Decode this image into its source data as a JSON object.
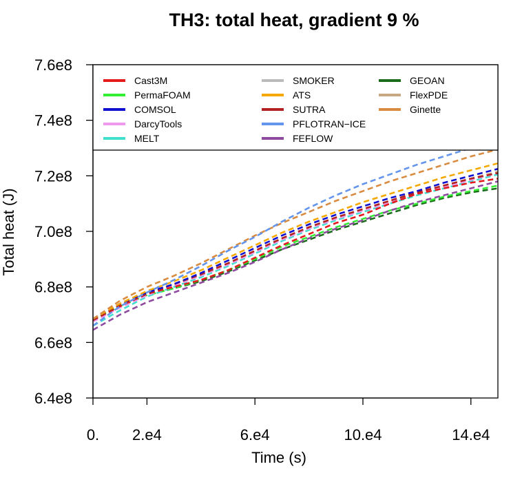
{
  "chart_data": {
    "type": "line",
    "title": "TH3: total heat, gradient 9 %",
    "xlabel": "Time (s)",
    "ylabel": "Total heat (J)",
    "xlim": [
      0,
      150000
    ],
    "ylim": [
      640000000,
      760000000
    ],
    "x_ticks": [
      {
        "value": 0,
        "label": "0."
      },
      {
        "value": 20000,
        "label": "2.e4"
      },
      {
        "value": 60000,
        "label": "6.e4"
      },
      {
        "value": 100000,
        "label": "10.e4"
      },
      {
        "value": 140000,
        "label": "14.e4"
      }
    ],
    "y_ticks": [
      {
        "value": 640000000,
        "label": "6.4e8"
      },
      {
        "value": 660000000,
        "label": "6.6e8"
      },
      {
        "value": 680000000,
        "label": "6.8e8"
      },
      {
        "value": 700000000,
        "label": "7.0e8"
      },
      {
        "value": 720000000,
        "label": "7.2e8"
      },
      {
        "value": 740000000,
        "label": "7.4e8"
      },
      {
        "value": 760000000,
        "label": "7.6e8"
      }
    ],
    "grid": false,
    "legend_position": "top",
    "x": [
      0,
      10000,
      20000,
      30000,
      40000,
      50000,
      60000,
      70000,
      80000,
      90000,
      100000,
      110000,
      120000,
      130000,
      140000,
      150000
    ],
    "series": [
      {
        "name": "Cast3M",
        "color": "#e41a1c",
        "dashed": true,
        "values": [
          668000000,
          673000000,
          677500000,
          680000000,
          682500000,
          686000000,
          690500000,
          695000000,
          699000000,
          703000000,
          706000000,
          710000000,
          713500000,
          715500000,
          717500000,
          719000000
        ]
      },
      {
        "name": "PermaFOAM",
        "color": "#33ee33",
        "dashed": true,
        "values": [
          668500000,
          673000000,
          677000000,
          679500000,
          682500000,
          686000000,
          690000000,
          694500000,
          698000000,
          701500000,
          704500000,
          707500000,
          710000000,
          712500000,
          714500000,
          716500000
        ]
      },
      {
        "name": "COMSOL",
        "color": "#1010d0",
        "dashed": true,
        "values": [
          668500000,
          674000000,
          678000000,
          681000000,
          685000000,
          689500000,
          694000000,
          698500000,
          702500000,
          706000000,
          709000000,
          712000000,
          714500000,
          717500000,
          720000000,
          722500000
        ]
      },
      {
        "name": "DarcyTools",
        "color": "#ee99ee",
        "dashed": true,
        "values": [
          667500000,
          672500000,
          677000000,
          680500000,
          684000000,
          688000000,
          692500000,
          697000000,
          701000000,
          704500000,
          707500000,
          710500000,
          713500000,
          716000000,
          718500000,
          721000000
        ]
      },
      {
        "name": "MELT",
        "color": "#40e0d0",
        "dashed": true,
        "values": [
          666000000,
          671500000,
          676500000,
          680000000,
          683500000,
          687500000,
          692000000,
          696500000,
          700500000,
          704000000,
          707000000,
          710000000,
          713000000,
          715500000,
          718000000,
          720500000
        ]
      },
      {
        "name": "SMOKER",
        "color": "#bbbbbb",
        "dashed": true,
        "values": [
          668000000,
          673500000,
          677500000,
          681000000,
          684500000,
          688500000,
          693000000,
          697500000,
          701500000,
          705000000,
          708000000,
          711000000,
          714000000,
          716500000,
          719000000,
          721500000
        ]
      },
      {
        "name": "ATS",
        "color": "#f5a800",
        "dashed": true,
        "values": [
          668500000,
          674000000,
          678500000,
          682000000,
          686000000,
          690500000,
          695000000,
          699500000,
          703500000,
          707000000,
          710500000,
          713500000,
          716500000,
          719500000,
          722000000,
          724500000
        ]
      },
      {
        "name": "SUTRA",
        "color": "#b22222",
        "dashed": true,
        "values": [
          668000000,
          673500000,
          677500000,
          681000000,
          684500000,
          688500000,
          693000000,
          697500000,
          701500000,
          705000000,
          708000000,
          711000000,
          714000000,
          716500000,
          719000000,
          721000000
        ]
      },
      {
        "name": "PFLOTRAN−ICE",
        "color": "#6495ed",
        "dashed": true,
        "values": [
          666000000,
          673000000,
          678000000,
          682500000,
          687500000,
          693000000,
          698000000,
          703500000,
          708500000,
          713000000,
          717000000,
          720500000,
          724000000,
          727000000,
          730000000,
          732500000
        ]
      },
      {
        "name": "FEFLOW",
        "color": "#8e4a9e",
        "dashed": true,
        "values": [
          664500000,
          670000000,
          674500000,
          678000000,
          681500000,
          685000000,
          689000000,
          693500000,
          697500000,
          701000000,
          704000000,
          707500000,
          710500000,
          713000000,
          715500000,
          718000000
        ]
      },
      {
        "name": "GEOAN",
        "color": "#1a6b1a",
        "dashed": true,
        "values": [
          668000000,
          673500000,
          677000000,
          679500000,
          682000000,
          685500000,
          689500000,
          693500000,
          697000000,
          700500000,
          703500000,
          706500000,
          709500000,
          712000000,
          714000000,
          715500000
        ]
      },
      {
        "name": "FlexPDE",
        "color": "#c8a882",
        "dashed": true,
        "values": [
          668000000,
          673500000,
          677500000,
          681000000,
          684500000,
          688500000,
          693000000,
          697500000,
          701500000,
          705000000,
          708000000,
          711000000,
          714000000,
          716500000,
          719000000,
          721500000
        ]
      },
      {
        "name": "Ginette",
        "color": "#d98c40",
        "dashed": true,
        "values": [
          668500000,
          675000000,
          680000000,
          684000000,
          688500000,
          693500000,
          698500000,
          703000000,
          707000000,
          711000000,
          714500000,
          718000000,
          721000000,
          724000000,
          727000000,
          729500000
        ]
      }
    ],
    "legend_columns": [
      [
        "Cast3M",
        "PermaFOAM",
        "COMSOL",
        "DarcyTools",
        "MELT"
      ],
      [
        "SMOKER",
        "ATS",
        "SUTRA",
        "PFLOTRAN−ICE",
        "FEFLOW"
      ],
      [
        "GEOAN",
        "FlexPDE",
        "Ginette"
      ]
    ]
  }
}
